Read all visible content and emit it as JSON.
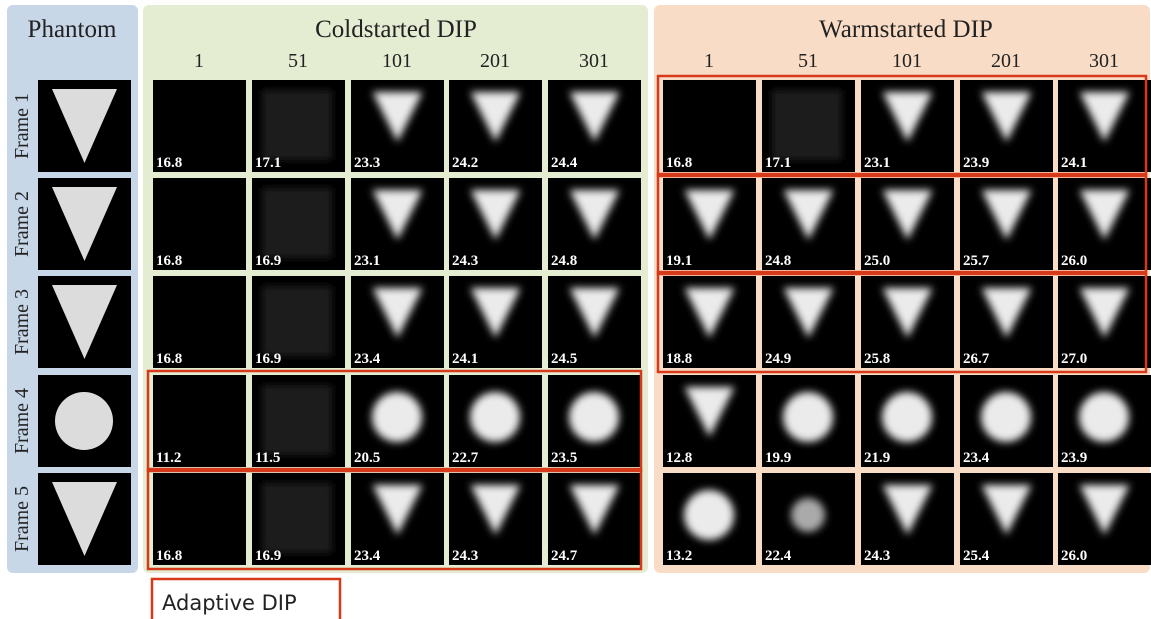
{
  "phantom": {
    "title": "Phantom",
    "frames": [
      "Frame 1",
      "Frame 2",
      "Frame 3",
      "Frame 4",
      "Frame 5"
    ]
  },
  "coldstarted": {
    "title": "Coldstarted DIP",
    "iterations": [
      "1",
      "51",
      "101",
      "201",
      "301"
    ],
    "values": [
      [
        "16.8",
        "17.1",
        "23.3",
        "24.2",
        "24.4"
      ],
      [
        "16.8",
        "16.9",
        "23.1",
        "24.3",
        "24.8"
      ],
      [
        "16.8",
        "16.9",
        "23.4",
        "24.1",
        "24.5"
      ],
      [
        "11.2",
        "11.5",
        "20.5",
        "22.7",
        "23.5"
      ],
      [
        "16.8",
        "16.9",
        "23.4",
        "24.3",
        "24.7"
      ]
    ]
  },
  "warmstarted": {
    "title": "Warmstarted DIP",
    "iterations": [
      "1",
      "51",
      "101",
      "201",
      "301"
    ],
    "values": [
      [
        "16.8",
        "17.1",
        "23.1",
        "23.9",
        "24.1"
      ],
      [
        "19.1",
        "24.8",
        "25.0",
        "25.7",
        "26.0"
      ],
      [
        "18.8",
        "24.9",
        "25.8",
        "26.7",
        "27.0"
      ],
      [
        "12.8",
        "19.9",
        "21.9",
        "23.4",
        "23.9"
      ],
      [
        "13.2",
        "22.4",
        "24.3",
        "25.4",
        "26.0"
      ]
    ]
  },
  "legend": "Adaptive DIP"
}
